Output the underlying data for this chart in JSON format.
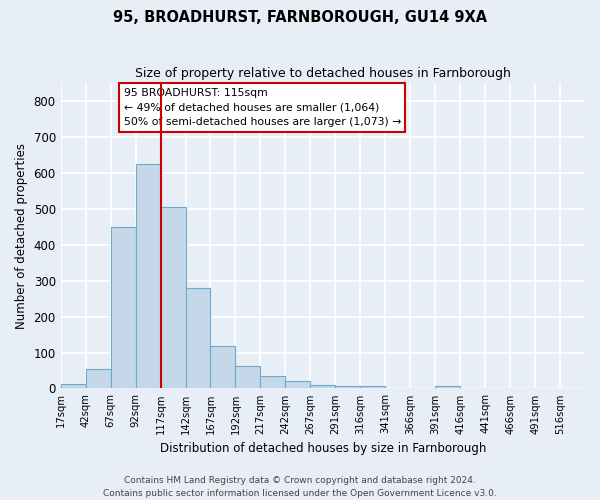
{
  "title1": "95, BROADHURST, FARNBOROUGH, GU14 9XA",
  "title2": "Size of property relative to detached houses in Farnborough",
  "xlabel": "Distribution of detached houses by size in Farnborough",
  "ylabel": "Number of detached properties",
  "bar_values": [
    13,
    55,
    450,
    625,
    505,
    280,
    118,
    63,
    35,
    20,
    10,
    7,
    8,
    0,
    0,
    8,
    0,
    0,
    0,
    0,
    0
  ],
  "bin_labels": [
    "17sqm",
    "42sqm",
    "67sqm",
    "92sqm",
    "117sqm",
    "142sqm",
    "167sqm",
    "192sqm",
    "217sqm",
    "242sqm",
    "267sqm",
    "291sqm",
    "316sqm",
    "341sqm",
    "366sqm",
    "391sqm",
    "416sqm",
    "441sqm",
    "466sqm",
    "491sqm",
    "516sqm"
  ],
  "bar_color": "#c5d8ea",
  "bar_edge_color": "#6aaacb",
  "vline_color": "#cc0000",
  "annotation_text": "95 BROADHURST: 115sqm\n← 49% of detached houses are smaller (1,064)\n50% of semi-detached houses are larger (1,073) →",
  "annotation_box_color": "#ffffff",
  "annotation_box_edge": "#cc0000",
  "ylim": [
    0,
    850
  ],
  "yticks": [
    0,
    100,
    200,
    300,
    400,
    500,
    600,
    700,
    800
  ],
  "footer_text": "Contains HM Land Registry data © Crown copyright and database right 2024.\nContains public sector information licensed under the Open Government Licence v3.0.",
  "bg_color": "#e8eef5",
  "plot_bg_color": "#e8eef5",
  "grid_color": "#ffffff",
  "title1_fontsize": 10.5,
  "title2_fontsize": 9
}
